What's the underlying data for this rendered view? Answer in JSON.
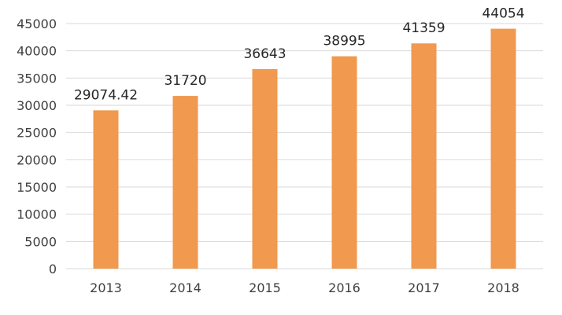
{
  "chart_data": {
    "type": "bar",
    "title": "",
    "xlabel": "",
    "ylabel": "",
    "categories": [
      "2013",
      "2014",
      "2015",
      "2016",
      "2017",
      "2018"
    ],
    "values": [
      29074.42,
      31720,
      36643,
      38995,
      41359,
      44054
    ],
    "data_labels": [
      "29074.42",
      "31720",
      "36643",
      "38995",
      "41359",
      "44054"
    ],
    "y_ticks": [
      0,
      5000,
      10000,
      15000,
      20000,
      25000,
      30000,
      35000,
      40000,
      45000
    ],
    "ylim": [
      0,
      45000
    ],
    "grid": true,
    "legend": "none",
    "bar_color": "#f0994f"
  }
}
